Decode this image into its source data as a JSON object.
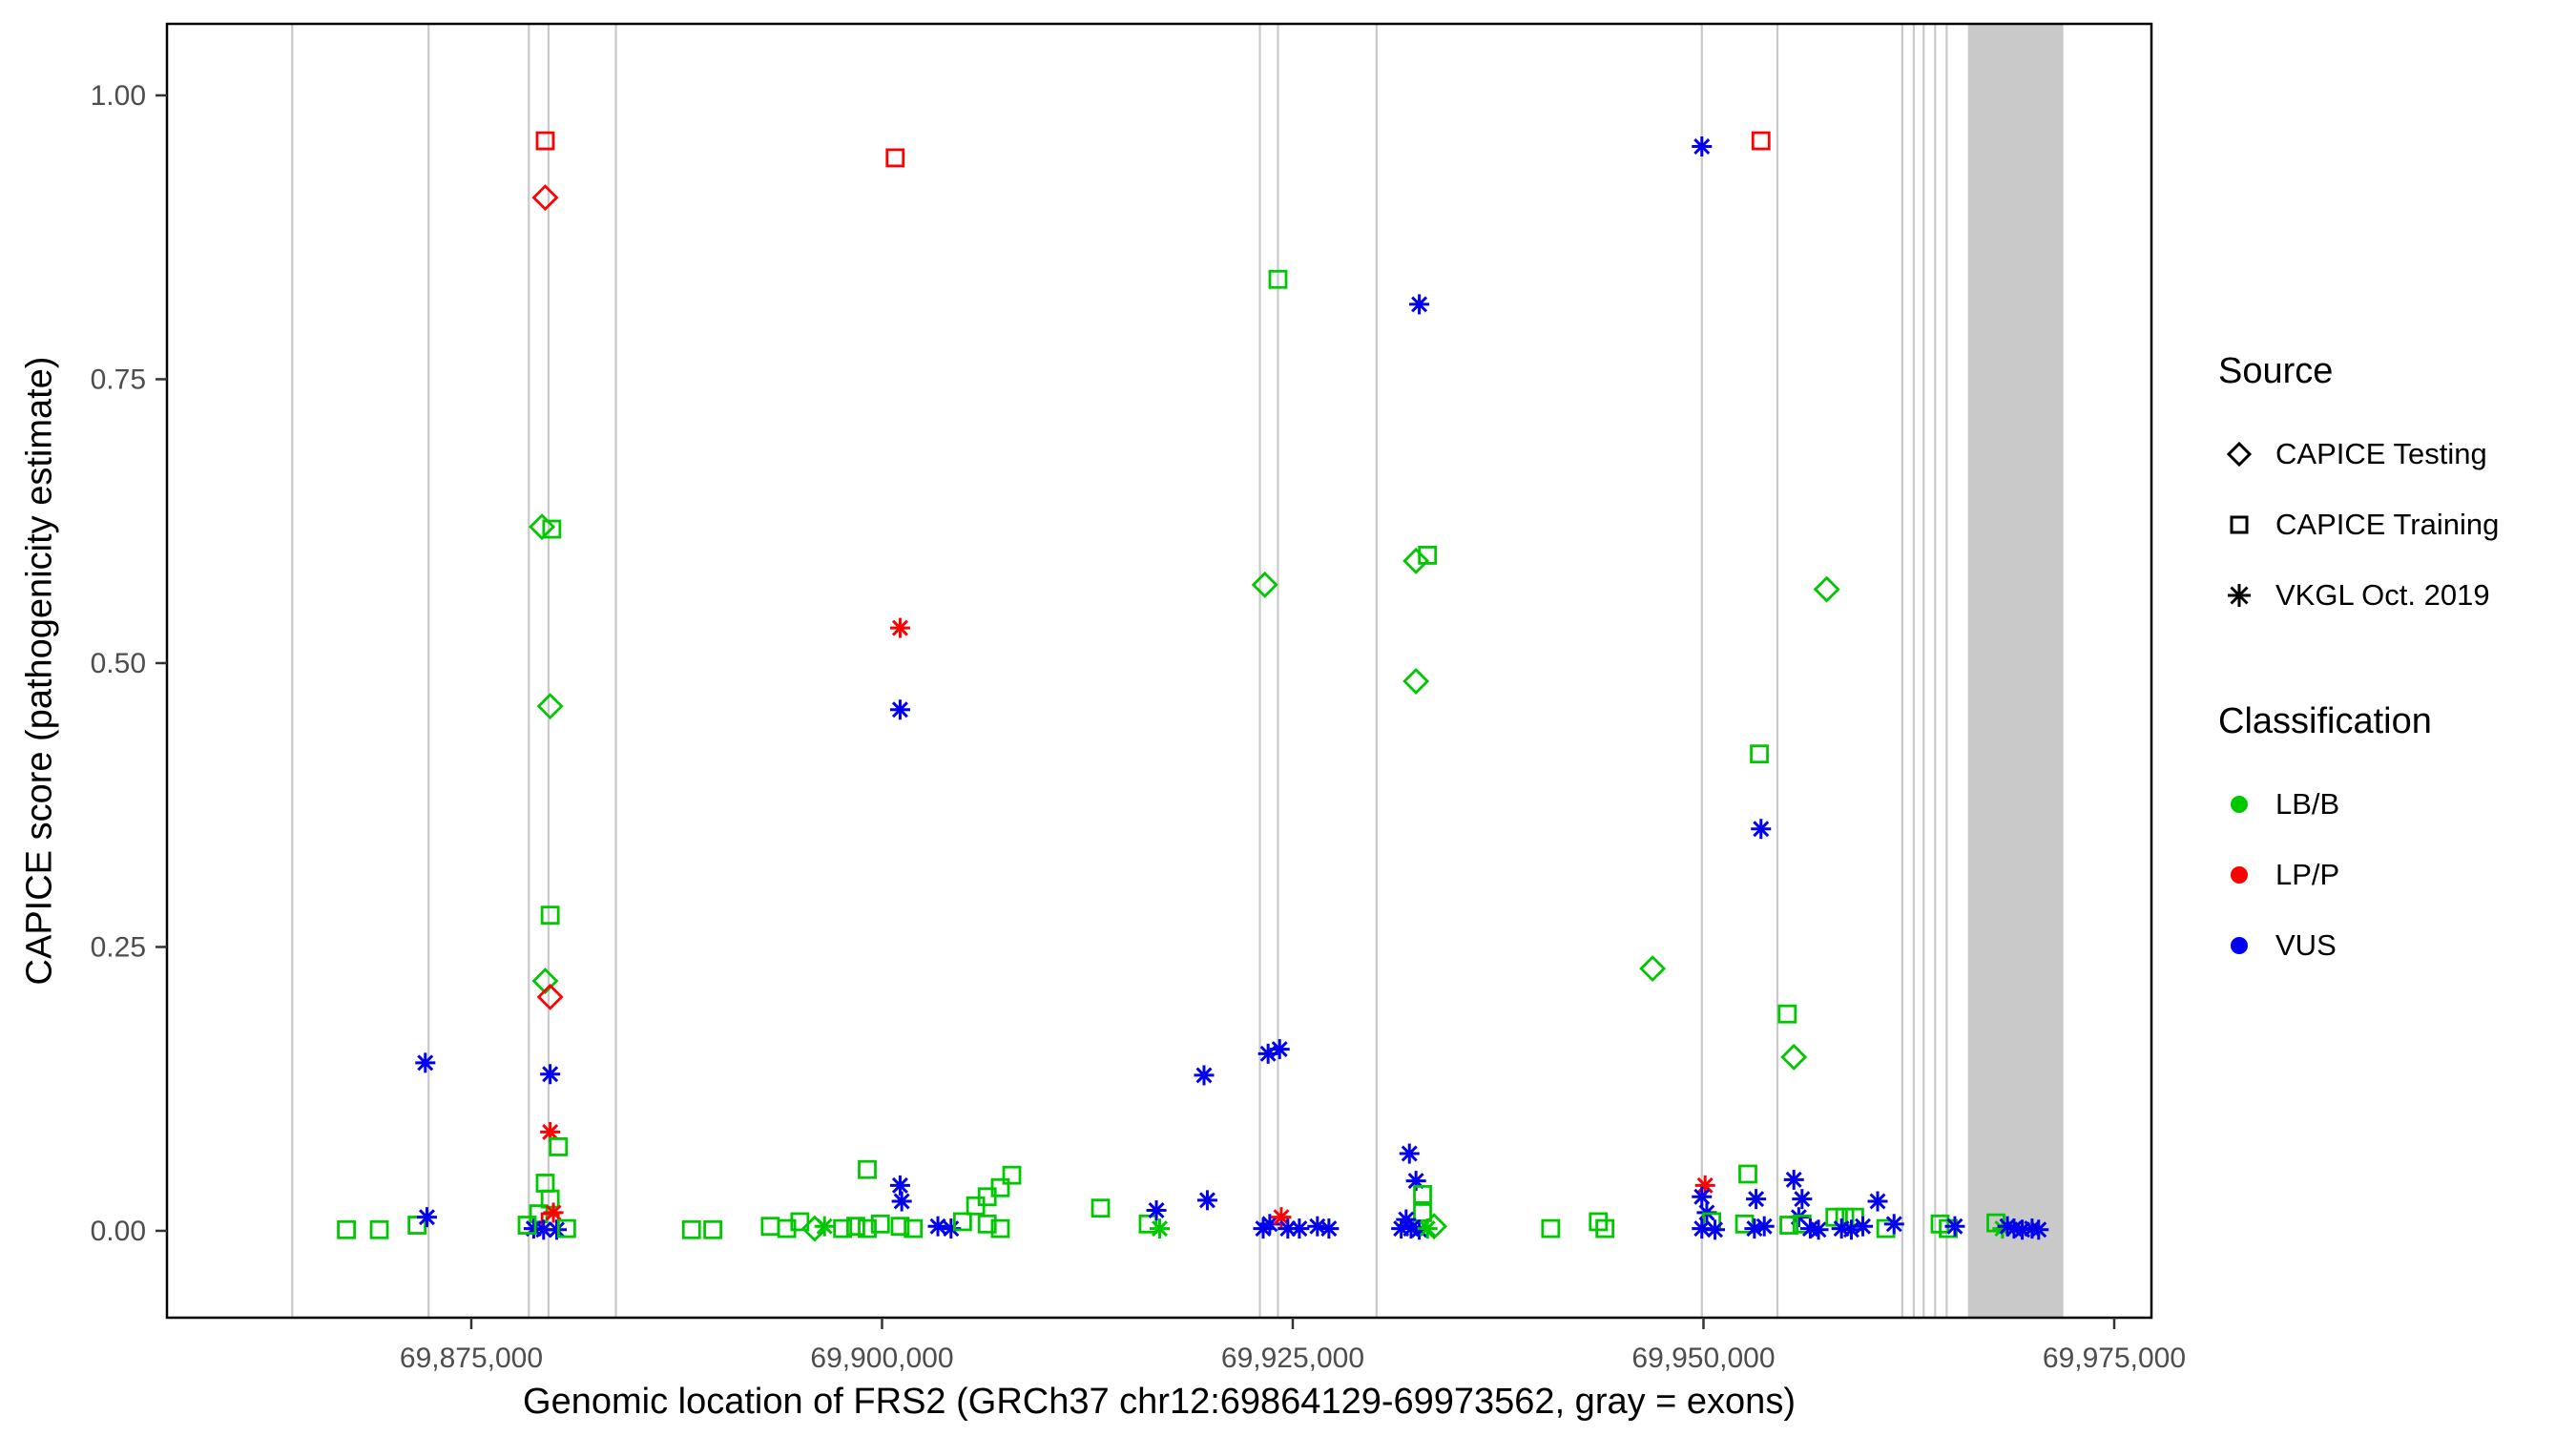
{
  "chart_data": {
    "type": "scatter",
    "title": "",
    "xlabel": "Genomic location of FRS2 (GRCh37 chr12:69864129-69973562, gray = exons)",
    "ylabel": "CAPICE score (pathogenicity estimate)",
    "x_domain": [
      69856476,
      69977265
    ],
    "y_domain": [
      -0.0765,
      1.063
    ],
    "x_ticks": {
      "values": [
        69875000,
        69900000,
        69925000,
        69950000,
        69975000
      ],
      "labels": [
        "69,875,000",
        "69,900,000",
        "69,925,000",
        "69,950,000",
        "69,975,000"
      ]
    },
    "y_ticks": {
      "values": [
        0,
        0.25,
        0.5,
        0.75,
        1.0
      ],
      "labels": [
        "0.00",
        "0.25",
        "0.50",
        "0.75",
        "1.00"
      ]
    },
    "grid": "off",
    "exon_color": "#c9c9c9",
    "exon_lines": [
      69864100,
      69872400,
      69878500,
      69879700,
      69883800,
      69923000,
      69924100,
      69930100,
      69949900,
      69954500,
      69962100,
      69962800,
      69963400,
      69964100,
      69964800
    ],
    "exon_region": [
      69966100,
      69971900
    ],
    "class_colors": {
      "B": "#00c800",
      "P": "#ff0000",
      "U": "#0000ee"
    },
    "legend": {
      "source_title": "Source",
      "source_glyph_color": "#000000",
      "source_items": [
        {
          "label": "CAPICE Testing",
          "shape": "diamond"
        },
        {
          "label": "CAPICE Training",
          "shape": "square"
        },
        {
          "label": "VKGL Oct. 2019",
          "shape": "asterisk"
        }
      ],
      "class_title": "Classification",
      "class_items": [
        {
          "label": "LB/B",
          "color": "#00c800"
        },
        {
          "label": "LP/P",
          "color": "#ff0000"
        },
        {
          "label": "VUS",
          "color": "#0000ee"
        }
      ]
    },
    "point_legend_note": "points encoded as [genomic_position, capice_score, source(T=CAPICE Testing diamond, R=CAPICE Training square, V=VKGL asterisk), classification(B=LB/B, P=LP/P, U=VUS)]",
    "points": [
      [
        69867400,
        0.001,
        "R",
        "B"
      ],
      [
        69869400,
        0.001,
        "R",
        "B"
      ],
      [
        69871700,
        0.005,
        "R",
        "B"
      ],
      [
        69872200,
        0.148,
        "V",
        "U"
      ],
      [
        69872300,
        0.012,
        "V",
        "U"
      ],
      [
        69879500,
        0.96,
        "R",
        "P"
      ],
      [
        69879500,
        0.91,
        "T",
        "P"
      ],
      [
        69879300,
        0.62,
        "T",
        "B"
      ],
      [
        69879900,
        0.618,
        "R",
        "B"
      ],
      [
        69879800,
        0.462,
        "T",
        "B"
      ],
      [
        69879800,
        0.278,
        "R",
        "B"
      ],
      [
        69879500,
        0.22,
        "T",
        "B"
      ],
      [
        69879800,
        0.206,
        "T",
        "P"
      ],
      [
        69879800,
        0.138,
        "V",
        "U"
      ],
      [
        69879800,
        0.087,
        "V",
        "P"
      ],
      [
        69880300,
        0.074,
        "R",
        "B"
      ],
      [
        69879500,
        0.042,
        "R",
        "B"
      ],
      [
        69879800,
        0.028,
        "R",
        "B"
      ],
      [
        69879100,
        0.015,
        "R",
        "B"
      ],
      [
        69880000,
        0.016,
        "V",
        "P"
      ],
      [
        69879800,
        0.008,
        "R",
        "P"
      ],
      [
        69878800,
        0.002,
        "V",
        "U"
      ],
      [
        69879400,
        0.001,
        "V",
        "U"
      ],
      [
        69880200,
        0.001,
        "V",
        "U"
      ],
      [
        69880800,
        0.002,
        "R",
        "B"
      ],
      [
        69878400,
        0.005,
        "R",
        "B"
      ],
      [
        69888400,
        0.001,
        "R",
        "B"
      ],
      [
        69889700,
        0.001,
        "R",
        "B"
      ],
      [
        69893200,
        0.004,
        "R",
        "B"
      ],
      [
        69894200,
        0.002,
        "R",
        "B"
      ],
      [
        69895000,
        0.008,
        "R",
        "B"
      ],
      [
        69895900,
        0.002,
        "T",
        "B"
      ],
      [
        69896500,
        0.004,
        "V",
        "B"
      ],
      [
        69897600,
        0.002,
        "R",
        "B"
      ],
      [
        69898400,
        0.004,
        "R",
        "B"
      ],
      [
        69899100,
        0.054,
        "R",
        "B"
      ],
      [
        69899100,
        0.002,
        "R",
        "B"
      ],
      [
        69899900,
        0.006,
        "R",
        "B"
      ],
      [
        69900800,
        0.945,
        "R",
        "P"
      ],
      [
        69901100,
        0.531,
        "V",
        "P"
      ],
      [
        69901100,
        0.459,
        "V",
        "U"
      ],
      [
        69901100,
        0.04,
        "V",
        "U"
      ],
      [
        69901200,
        0.026,
        "V",
        "U"
      ],
      [
        69901100,
        0.004,
        "R",
        "B"
      ],
      [
        69901900,
        0.002,
        "R",
        "B"
      ],
      [
        69903400,
        0.004,
        "V",
        "U"
      ],
      [
        69904200,
        0.002,
        "V",
        "U"
      ],
      [
        69904900,
        0.008,
        "R",
        "B"
      ],
      [
        69905700,
        0.022,
        "R",
        "B"
      ],
      [
        69906400,
        0.03,
        "R",
        "B"
      ],
      [
        69906400,
        0.006,
        "R",
        "B"
      ],
      [
        69907200,
        0.038,
        "R",
        "B"
      ],
      [
        69907900,
        0.049,
        "R",
        "B"
      ],
      [
        69907200,
        0.002,
        "R",
        "B"
      ],
      [
        69913300,
        0.02,
        "R",
        "B"
      ],
      [
        69916200,
        0.006,
        "R",
        "B"
      ],
      [
        69916700,
        0.018,
        "V",
        "U"
      ],
      [
        69916900,
        0.002,
        "V",
        "B"
      ],
      [
        69919600,
        0.137,
        "V",
        "U"
      ],
      [
        69919800,
        0.027,
        "V",
        "U"
      ],
      [
        69923300,
        0.569,
        "T",
        "B"
      ],
      [
        69924100,
        0.838,
        "R",
        "B"
      ],
      [
        69923500,
        0.156,
        "V",
        "U"
      ],
      [
        69924200,
        0.16,
        "V",
        "U"
      ],
      [
        69923200,
        0.002,
        "V",
        "U"
      ],
      [
        69923600,
        0.006,
        "V",
        "U"
      ],
      [
        69924300,
        0.012,
        "V",
        "P"
      ],
      [
        69924700,
        0.002,
        "V",
        "U"
      ],
      [
        69925400,
        0.002,
        "V",
        "U"
      ],
      [
        69926500,
        0.004,
        "V",
        "U"
      ],
      [
        69927200,
        0.002,
        "V",
        "U"
      ],
      [
        69932700,
        0.816,
        "V",
        "U"
      ],
      [
        69932500,
        0.59,
        "T",
        "B"
      ],
      [
        69933200,
        0.595,
        "R",
        "B"
      ],
      [
        69932500,
        0.484,
        "T",
        "B"
      ],
      [
        69932100,
        0.068,
        "V",
        "U"
      ],
      [
        69932500,
        0.044,
        "V",
        "U"
      ],
      [
        69932900,
        0.032,
        "R",
        "B"
      ],
      [
        69932900,
        0.016,
        "R",
        "B"
      ],
      [
        69931900,
        0.01,
        "V",
        "U"
      ],
      [
        69932200,
        0.002,
        "V",
        "U"
      ],
      [
        69932700,
        0.001,
        "V",
        "U"
      ],
      [
        69933200,
        0.002,
        "V",
        "B"
      ],
      [
        69933600,
        0.004,
        "T",
        "B"
      ],
      [
        69931600,
        0.002,
        "V",
        "U"
      ],
      [
        69940700,
        0.002,
        "R",
        "B"
      ],
      [
        69943600,
        0.008,
        "R",
        "B"
      ],
      [
        69944000,
        0.002,
        "R",
        "B"
      ],
      [
        69946900,
        0.231,
        "T",
        "B"
      ],
      [
        69949900,
        0.955,
        "V",
        "U"
      ],
      [
        69950100,
        0.04,
        "V",
        "P"
      ],
      [
        69949900,
        0.03,
        "V",
        "U"
      ],
      [
        69950200,
        0.016,
        "V",
        "U"
      ],
      [
        69950500,
        0.008,
        "R",
        "B"
      ],
      [
        69949900,
        0.002,
        "V",
        "U"
      ],
      [
        69950700,
        0.001,
        "V",
        "U"
      ],
      [
        69953500,
        0.96,
        "R",
        "P"
      ],
      [
        69953400,
        0.42,
        "R",
        "B"
      ],
      [
        69953500,
        0.354,
        "V",
        "U"
      ],
      [
        69952700,
        0.05,
        "R",
        "B"
      ],
      [
        69953200,
        0.028,
        "V",
        "U"
      ],
      [
        69952500,
        0.006,
        "R",
        "B"
      ],
      [
        69953100,
        0.002,
        "V",
        "U"
      ],
      [
        69953700,
        0.004,
        "V",
        "U"
      ],
      [
        69955100,
        0.191,
        "R",
        "B"
      ],
      [
        69955500,
        0.153,
        "T",
        "B"
      ],
      [
        69957500,
        0.565,
        "T",
        "B"
      ],
      [
        69955500,
        0.045,
        "V",
        "U"
      ],
      [
        69956000,
        0.028,
        "V",
        "U"
      ],
      [
        69955800,
        0.012,
        "V",
        "U"
      ],
      [
        69955200,
        0.005,
        "R",
        "B"
      ],
      [
        69956000,
        0.006,
        "R",
        "B"
      ],
      [
        69956500,
        0.002,
        "V",
        "U"
      ],
      [
        69957000,
        0.001,
        "V",
        "U"
      ],
      [
        69958000,
        0.012,
        "R",
        "B"
      ],
      [
        69958600,
        0.012,
        "R",
        "B"
      ],
      [
        69959200,
        0.012,
        "R",
        "B"
      ],
      [
        69958400,
        0.002,
        "V",
        "U"
      ],
      [
        69959000,
        0.001,
        "V",
        "U"
      ],
      [
        69959700,
        0.004,
        "V",
        "U"
      ],
      [
        69960600,
        0.026,
        "V",
        "U"
      ],
      [
        69961100,
        0.002,
        "R",
        "B"
      ],
      [
        69961600,
        0.006,
        "V",
        "U"
      ],
      [
        69964400,
        0.006,
        "R",
        "B"
      ],
      [
        69964900,
        0.002,
        "R",
        "B"
      ],
      [
        69965300,
        0.004,
        "V",
        "U"
      ],
      [
        69967800,
        0.007,
        "R",
        "B"
      ],
      [
        69968200,
        0.002,
        "V",
        "B"
      ],
      [
        69968500,
        0.004,
        "V",
        "U"
      ],
      [
        69968900,
        0.002,
        "V",
        "U"
      ],
      [
        69969400,
        0.001,
        "V",
        "U"
      ],
      [
        69970000,
        0.002,
        "V",
        "U"
      ],
      [
        69970400,
        0.001,
        "V",
        "U"
      ]
    ]
  }
}
